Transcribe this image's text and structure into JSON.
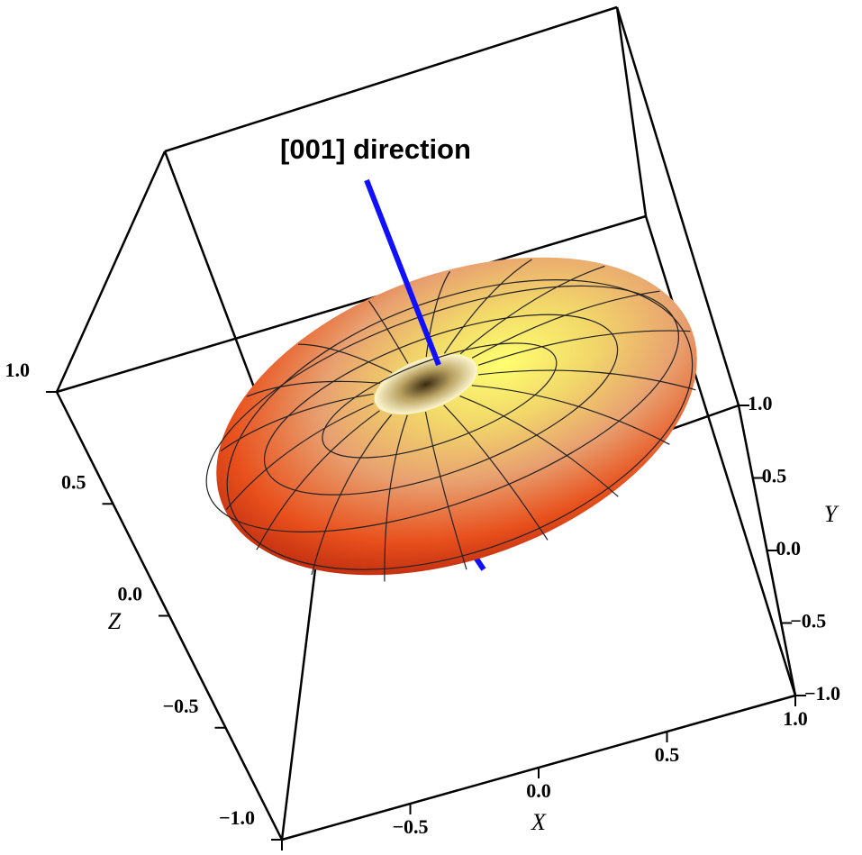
{
  "chart_data": {
    "type": "surface3d",
    "annotation": "[001] direction",
    "xlabel": "X",
    "ylabel": "Y",
    "zlabel": "Z",
    "xlim": [
      -1,
      1
    ],
    "ylim": [
      -1,
      1
    ],
    "zlim": [
      -1,
      1
    ],
    "xticks": [
      {
        "value": -1,
        "label": "−1.0"
      },
      {
        "value": -0.5,
        "label": "−0.5"
      },
      {
        "value": 0,
        "label": "0.0"
      },
      0.5,
      {
        "value": 1,
        "label": "1.0"
      }
    ],
    "yticks": [
      {
        "value": -1,
        "label": "−1.0"
      },
      {
        "value": -0.5,
        "label": "−0.5"
      },
      {
        "value": 0,
        "label": "0.0"
      },
      0.5,
      {
        "value": 1,
        "label": "1.0"
      }
    ],
    "zticks": [
      {
        "value": -1,
        "label": "−1.0"
      },
      {
        "value": -0.5,
        "label": "−0.5"
      },
      {
        "value": 0,
        "label": "0.0"
      },
      0.5,
      {
        "value": 1,
        "label": "1.0"
      }
    ]
  }
}
